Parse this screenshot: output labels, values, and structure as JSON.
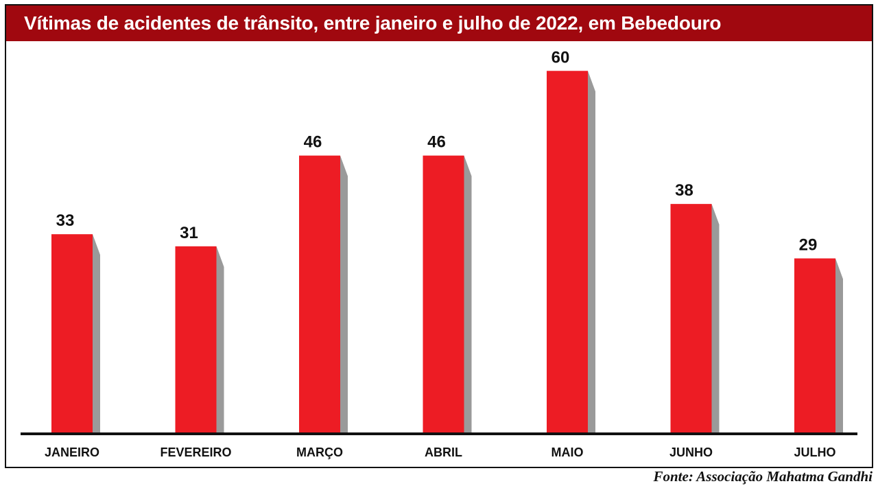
{
  "colors": {
    "title_bar": "#a0080f",
    "bar": "#ed1c24",
    "bar_shadow": "#9a9a9a",
    "baseline": "#111111"
  },
  "header": {
    "title": "Vítimas de acidentes de trânsito, entre janeiro e julho de 2022, em Bebedouro"
  },
  "footer": {
    "source": "Fonte: Associação Mahatma Gandhi"
  },
  "chart_data": {
    "type": "bar",
    "title": "Vítimas de acidentes de trânsito, entre janeiro e julho de 2022, em Bebedouro",
    "categories": [
      "JANEIRO",
      "FEVEREIRO",
      "MARÇO",
      "ABRIL",
      "MAIO",
      "JUNHO",
      "JULHO"
    ],
    "values": [
      33,
      31,
      46,
      46,
      60,
      38,
      29
    ],
    "data_labels": [
      "33",
      "31",
      "46",
      "46",
      "60",
      "38",
      "29"
    ],
    "ylim": [
      0,
      64
    ],
    "grid": false,
    "legend": "none",
    "y_axis_visible": false
  }
}
